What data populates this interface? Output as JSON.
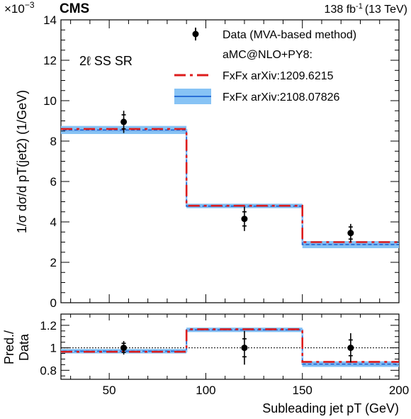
{
  "header": {
    "exponent_base": "×10",
    "exponent_power": "−3",
    "experiment": "CMS",
    "lumi": "138 fb",
    "lumi_power": "-1",
    "energy": "(13 TeV)"
  },
  "region_label": "2ℓ SS SR",
  "legend": {
    "data": "Data (MVA-based method)",
    "generator": "aMC@NLO+PY8:",
    "pred_a": "FxFx arXiv:1209.6215",
    "pred_b": "FxFx arXiv:2108.07826"
  },
  "axes": {
    "ylabel_main": "1/σ dσ/d pT(jet2) (1/GeV)",
    "ylabel_ratio_line1": "Pred./",
    "ylabel_ratio_line2": "Data",
    "xlabel": "Subleading jet pT (GeV)",
    "xticks": [
      "50",
      "100",
      "150",
      "200"
    ],
    "yticks_main": [
      "0",
      "2",
      "4",
      "6",
      "8",
      "10",
      "12",
      "14"
    ],
    "yticks_ratio": [
      "0.8",
      "1",
      "1.2"
    ]
  },
  "colors": {
    "data": "#000000",
    "pred_a": "#dd1c1c",
    "pred_b": "#2a6fd6",
    "band": "#87c3f5",
    "band_edge": "#b8dcfa"
  },
  "chart_data": [
    {
      "type": "step",
      "title": "",
      "xlabel": "Subleading jet pT (GeV)",
      "ylabel": "1/σ dσ/d pT(jet2) (1/GeV)",
      "y_scale_factor": 0.001,
      "xlim": [
        25,
        200
      ],
      "ylim": [
        0,
        14
      ],
      "bin_edges": [
        25,
        90,
        150,
        200
      ],
      "series": [
        {
          "name": "Data (MVA-based method)",
          "kind": "points",
          "x": [
            57.5,
            120,
            175
          ],
          "values": [
            8.95,
            4.15,
            3.45
          ],
          "err_stat": [
            0.35,
            0.35,
            0.3
          ],
          "err_tot": [
            0.55,
            0.6,
            0.45
          ]
        },
        {
          "name": "FxFx arXiv:1209.6215",
          "kind": "step",
          "values": [
            8.6,
            4.8,
            3.0
          ]
        },
        {
          "name": "FxFx arXiv:2108.07826",
          "kind": "step",
          "values": [
            8.55,
            4.78,
            2.88
          ],
          "band_lo": [
            8.35,
            4.68,
            2.7
          ],
          "band_hi": [
            8.75,
            4.9,
            3.05
          ]
        }
      ]
    },
    {
      "type": "step",
      "title": "",
      "xlabel": "Subleading jet pT (GeV)",
      "ylabel": "Pred./Data",
      "xlim": [
        25,
        200
      ],
      "ylim": [
        0.72,
        1.3
      ],
      "reference_line": 1.0,
      "bin_edges": [
        25,
        90,
        150,
        200
      ],
      "series": [
        {
          "name": "Data (MVA-based method)",
          "kind": "points",
          "x": [
            57.5,
            120,
            175
          ],
          "values": [
            1.0,
            1.0,
            1.0
          ],
          "err_stat": [
            0.04,
            0.08,
            0.07
          ],
          "err_tot": [
            0.06,
            0.15,
            0.13
          ]
        },
        {
          "name": "FxFx arXiv:1209.6215",
          "kind": "step",
          "values": [
            0.965,
            1.165,
            0.875
          ]
        },
        {
          "name": "FxFx arXiv:2108.07826",
          "kind": "step",
          "values": [
            0.97,
            1.16,
            0.855
          ],
          "band_lo": [
            0.95,
            1.14,
            0.83
          ],
          "band_hi": [
            0.99,
            1.18,
            0.88
          ]
        }
      ]
    }
  ]
}
